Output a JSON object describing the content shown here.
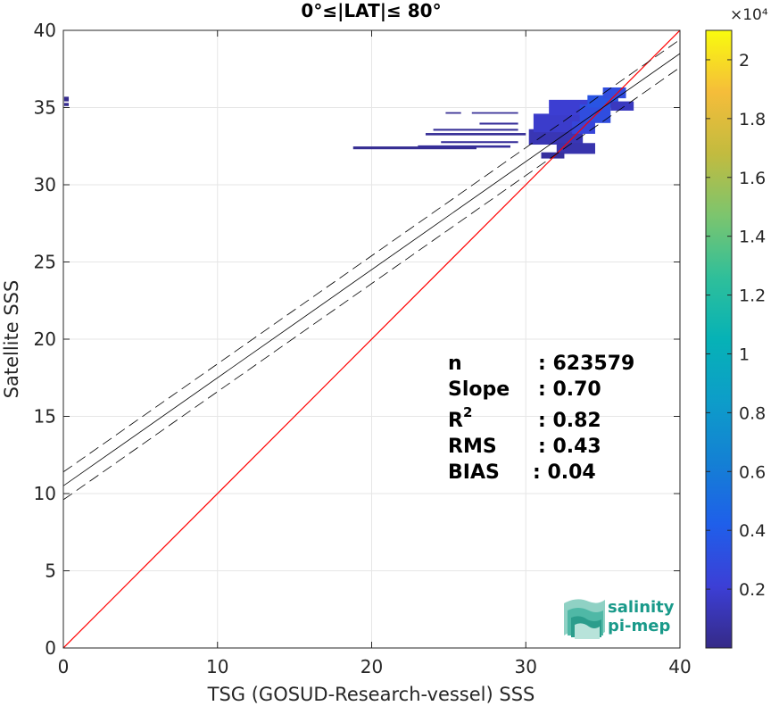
{
  "chart_data": {
    "type": "heatmap",
    "title": "0°≤|LAT|≤ 80°",
    "xlabel": "TSG (GOSUD-Research-vessel) SSS",
    "ylabel": "Satellite SSS",
    "xlim": [
      0,
      40
    ],
    "ylim": [
      0,
      40
    ],
    "xticks": [
      0,
      10,
      20,
      30,
      40
    ],
    "yticks": [
      0,
      5,
      10,
      15,
      20,
      25,
      30,
      35,
      40
    ],
    "grid": true,
    "identity_line": {
      "slope": 1,
      "intercept": 0,
      "color": "#ff0000"
    },
    "regression_line": {
      "slope": 0.7,
      "intercept": 10.5,
      "color": "#000000"
    },
    "confidence_band": {
      "offset": 0.9,
      "style": "dashed"
    },
    "density_cells": [
      {
        "x": 0.05,
        "y": 35.4,
        "w": 0.3,
        "h": 0.3,
        "v": 0.02
      },
      {
        "x": 0.05,
        "y": 35.1,
        "w": 0.3,
        "h": 0.2,
        "v": 0.02
      },
      {
        "x": 18.8,
        "y": 32.3,
        "w": 8.0,
        "h": 0.18,
        "v": 0.03
      },
      {
        "x": 23.0,
        "y": 32.4,
        "w": 6.0,
        "h": 0.15,
        "v": 0.05
      },
      {
        "x": 23.5,
        "y": 33.2,
        "w": 6.5,
        "h": 0.15,
        "v": 0.04
      },
      {
        "x": 24.0,
        "y": 33.5,
        "w": 5.5,
        "h": 0.12,
        "v": 0.04
      },
      {
        "x": 24.5,
        "y": 32.7,
        "w": 5.0,
        "h": 0.12,
        "v": 0.05
      },
      {
        "x": 24.8,
        "y": 34.6,
        "w": 1.0,
        "h": 0.1,
        "v": 0.03
      },
      {
        "x": 26.5,
        "y": 34.6,
        "w": 3.0,
        "h": 0.1,
        "v": 0.04
      },
      {
        "x": 27.0,
        "y": 33.9,
        "w": 2.5,
        "h": 0.12,
        "v": 0.05
      },
      {
        "x": 30.2,
        "y": 32.6,
        "w": 3.5,
        "h": 1.0,
        "v": 0.12
      },
      {
        "x": 30.5,
        "y": 33.4,
        "w": 3.5,
        "h": 1.2,
        "v": 0.18
      },
      {
        "x": 31.5,
        "y": 34.5,
        "w": 3.5,
        "h": 1.0,
        "v": 0.2
      },
      {
        "x": 32.0,
        "y": 32.0,
        "w": 2.5,
        "h": 0.7,
        "v": 0.1
      },
      {
        "x": 31.0,
        "y": 31.7,
        "w": 1.5,
        "h": 0.4,
        "v": 0.06
      },
      {
        "x": 33.5,
        "y": 34.0,
        "w": 2.0,
        "h": 1.2,
        "v": 0.3
      },
      {
        "x": 34.0,
        "y": 35.0,
        "w": 2.0,
        "h": 0.8,
        "v": 0.35
      },
      {
        "x": 35.0,
        "y": 35.6,
        "w": 1.5,
        "h": 0.7,
        "v": 0.3
      },
      {
        "x": 35.5,
        "y": 34.8,
        "w": 1.5,
        "h": 0.6,
        "v": 0.15
      },
      {
        "x": 33.0,
        "y": 33.3,
        "w": 1.5,
        "h": 0.8,
        "v": 0.25
      }
    ],
    "colorbar": {
      "multiplier": "×10⁴",
      "ticks": [
        "0.2",
        "0.4",
        "0.6",
        "0.8",
        "1",
        "1.2",
        "1.4",
        "1.6",
        "1.8",
        "2"
      ],
      "tick_values": [
        0.2,
        0.4,
        0.6,
        0.8,
        1.0,
        1.2,
        1.4,
        1.6,
        1.8,
        2.0
      ],
      "range": [
        0,
        2.1
      ],
      "colormap": "parula"
    },
    "annotations": {
      "n_label": "n",
      "n_value": ": 623579",
      "slope_label": "Slope",
      "slope_value": ": 0.70",
      "r2_label": "R",
      "r2_sup": "2",
      "r2_value": ": 0.82",
      "rms_label": "RMS",
      "rms_value": ": 0.43",
      "bias_label": "BIAS",
      "bias_value": ": 0.04"
    }
  },
  "logo": {
    "line1": "salinity",
    "line2": "pi-mep"
  }
}
